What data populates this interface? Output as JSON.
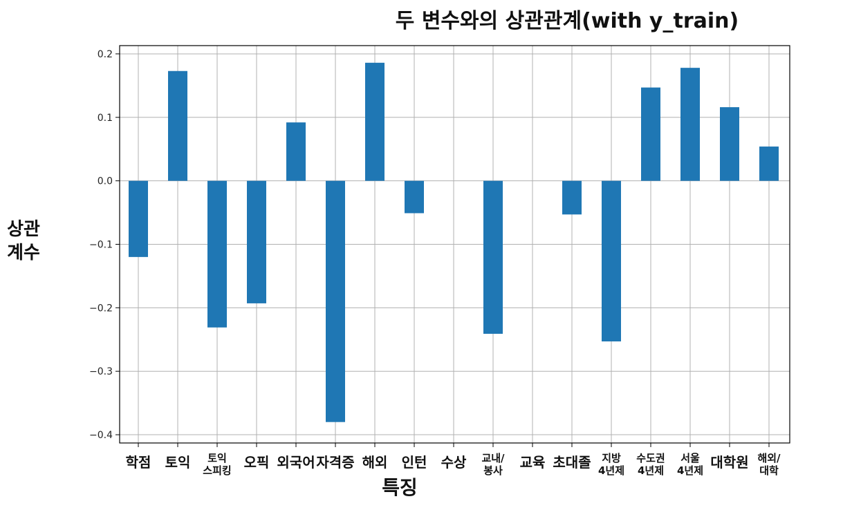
{
  "chart_data": {
    "type": "bar",
    "title": "두 변수와의 상관관계(with y_train)",
    "xlabel": "특징",
    "ylabel": "상관 계수",
    "categories": [
      "학점",
      "토익",
      "토익 스피킹",
      "오픽",
      "외국어",
      "자격증",
      "해외",
      "인턴",
      "수상",
      "교내/ 봉사",
      "교육",
      "초대졸",
      "지방 4년제",
      "수도권 4년제",
      "서울 4년제",
      "대학원",
      "해외/ 대학"
    ],
    "values": [
      -0.12,
      0.173,
      -0.231,
      -0.193,
      0.092,
      -0.38,
      0.186,
      -0.051,
      0.0,
      -0.241,
      0.0,
      -0.053,
      -0.253,
      0.147,
      0.178,
      0.116,
      0.054
    ],
    "yticks": [
      "0.2",
      "0.1",
      "0.0",
      "−0.1",
      "−0.2",
      "−0.3",
      "−0.4"
    ],
    "ytick_values": [
      0.2,
      0.1,
      0.0,
      -0.1,
      -0.2,
      -0.3,
      -0.4
    ],
    "ylim": [
      -0.413,
      0.213
    ],
    "grid": true,
    "bar_color": "#1f77b4",
    "grid_color": "#b0b0b0"
  }
}
